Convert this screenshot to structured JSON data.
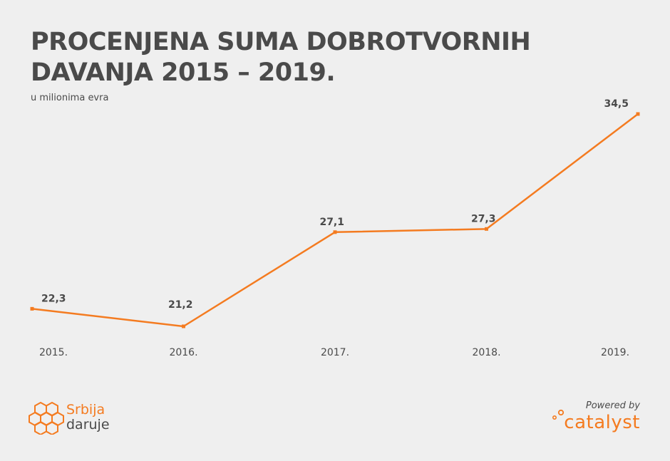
{
  "title_line1": "PROCENJENA SUMA DOBROTVORNIH",
  "title_line2": "DAVANJA 2015 – 2019.",
  "subtitle": "u milionima evra",
  "colors": {
    "line": "#f47b20",
    "text": "#4a4a4a",
    "background": "#efefef"
  },
  "chart_data": {
    "type": "line",
    "title": "PROCENJENA SUMA DOBROTVORNIH DAVANJA 2015 – 2019.",
    "subtitle": "u milionima evra",
    "categories": [
      "2015.",
      "2016.",
      "2017.",
      "2018.",
      "2019."
    ],
    "values": [
      22.3,
      21.2,
      27.1,
      27.3,
      34.5
    ],
    "value_labels": [
      "22,3",
      "21,2",
      "27,1",
      "27,3",
      "34,5"
    ],
    "grid": false,
    "legend": "none"
  },
  "logo_left": {
    "line1": "Srbija",
    "line2": "daruje",
    "icon": "hexagon-cluster-icon"
  },
  "logo_right": {
    "powered_by": "Powered by",
    "brand": "catalyst",
    "icon": "catalyst-dots-icon"
  }
}
